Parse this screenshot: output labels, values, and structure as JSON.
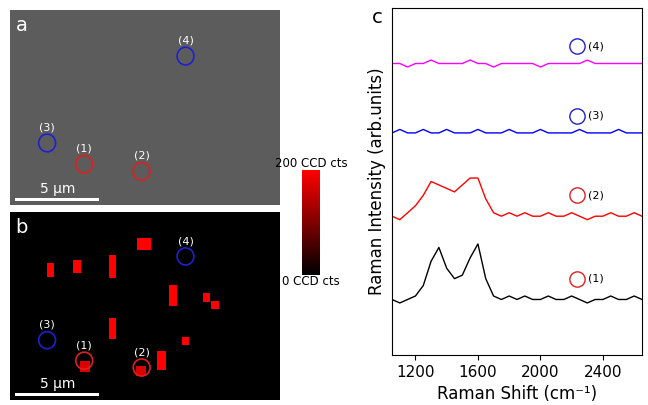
{
  "chart_data": [
    {
      "type": "image",
      "title": "a",
      "xlim": [
        0,
        16
      ],
      "ylim": [
        0,
        11
      ],
      "tick_labels": false,
      "color": "#5c5c5c",
      "scale_bar": {
        "length": 5,
        "label": "5 μm"
      },
      "circles": [
        {
          "name": "(1)",
          "x": 4.4,
          "y": 2.3,
          "color": "#e02020"
        },
        {
          "name": "(2)",
          "x": 7.8,
          "y": 1.9,
          "color": "#e02020"
        },
        {
          "name": "(3)",
          "x": 2.2,
          "y": 3.5,
          "color": "#2020d0"
        },
        {
          "name": "(4)",
          "x": 10.4,
          "y": 8.4,
          "color": "#2020d0"
        }
      ]
    },
    {
      "type": "map",
      "title": "b",
      "xlim": [
        0,
        16
      ],
      "ylim": [
        0,
        11
      ],
      "tick_labels": false,
      "color": "#000000",
      "scale_bar": {
        "length": 5,
        "label": "5 μm"
      },
      "spots": {
        "x": [
          2.39,
          3.98,
          6.08,
          7.95,
          9.66,
          11.65,
          12.16,
          6.08,
          8.98,
          10.4,
          4.43,
          7.78
        ],
        "y": [
          7.59,
          7.82,
          7.82,
          9.12,
          6.11,
          6.0,
          5.55,
          4.18,
          2.31,
          3.44,
          1.97,
          1.68
        ],
        "w": [
          0.45,
          0.45,
          0.45,
          0.8,
          0.45,
          0.45,
          0.45,
          0.45,
          0.57,
          0.45,
          0.57,
          0.57
        ],
        "h": [
          0.8,
          0.8,
          1.36,
          0.68,
          1.25,
          0.57,
          0.45,
          1.25,
          1.14,
          0.45,
          0.68,
          0.57
        ],
        "intensity": [
          200,
          200,
          200,
          200,
          200,
          200,
          200,
          200,
          200,
          200,
          170,
          170
        ]
      },
      "clim": [
        0,
        200
      ],
      "cticks": [
        {
          "value": 0,
          "label": "0 CCD cts"
        },
        {
          "value": 200,
          "label": "200 CCD cts"
        }
      ],
      "circles": [
        {
          "name": "(1)",
          "x": 4.4,
          "y": 2.3,
          "color": "#e02020"
        },
        {
          "name": "(2)",
          "x": 7.8,
          "y": 1.9,
          "color": "#e02020"
        },
        {
          "name": "(3)",
          "x": 2.2,
          "y": 3.5,
          "color": "#2020d0"
        },
        {
          "name": "(4)",
          "x": 10.4,
          "y": 8.4,
          "color": "#2020d0"
        }
      ]
    },
    {
      "type": "line",
      "title": "c",
      "x_label": "Raman Shift (cm⁻¹)",
      "y_label": "Raman Intensity (arb.units)",
      "tick_labels": "x",
      "xlim": [
        1050,
        2650
      ],
      "xticks": [
        1200,
        1600,
        2000,
        2400
      ],
      "ylim": [
        0,
        100
      ],
      "yticks": [],
      "x": [
        1050,
        1100,
        1150,
        1200,
        1250,
        1300,
        1350,
        1400,
        1450,
        1500,
        1550,
        1600,
        1650,
        1700,
        1750,
        1800,
        1850,
        1900,
        1950,
        2000,
        2050,
        2100,
        2150,
        2200,
        2250,
        2300,
        2350,
        2400,
        2450,
        2500,
        2550,
        2600,
        2650
      ],
      "series": [
        {
          "name": "(1)",
          "color": "#000000",
          "values": [
            16,
            15,
            16,
            17,
            20,
            27,
            31,
            25,
            22,
            23,
            28,
            32,
            22,
            17,
            16,
            17,
            16,
            17,
            16,
            16,
            17,
            16,
            16,
            17,
            16,
            15,
            16,
            16,
            17,
            16,
            16,
            17,
            16
          ]
        },
        {
          "name": "(2)",
          "color": "#ff0000",
          "values": [
            40,
            39,
            41,
            43,
            46,
            50,
            49,
            48,
            47,
            49,
            51,
            51,
            45,
            41,
            40,
            41,
            40,
            41,
            40,
            40,
            41,
            40,
            40,
            41,
            40,
            39,
            40,
            40,
            41,
            40,
            40,
            41,
            40
          ]
        },
        {
          "name": "(3)",
          "color": "#0000ff",
          "values": [
            64,
            65,
            64,
            64,
            65,
            64,
            64,
            65,
            64,
            64,
            64,
            65,
            64,
            64,
            64,
            65,
            64,
            64,
            64,
            65,
            64,
            64,
            64,
            64,
            65,
            64,
            64,
            64,
            64,
            65,
            64,
            64,
            64
          ]
        },
        {
          "name": "(4)",
          "color": "#ff00ff",
          "values": [
            84,
            84,
            83,
            84,
            84,
            85,
            84,
            84,
            84,
            84,
            85,
            84,
            84,
            83,
            84,
            84,
            84,
            84,
            84,
            83,
            84,
            84,
            84,
            84,
            84,
            85,
            84,
            84,
            84,
            84,
            84,
            84,
            84
          ]
        }
      ]
    }
  ]
}
